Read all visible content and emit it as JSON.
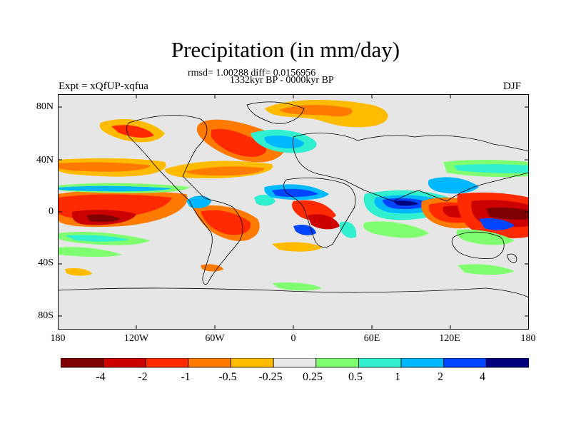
{
  "title": "Precipitation (in mm/day)",
  "stats_line": "rmsd= 1.00288 diff= 0.0156956",
  "period": "1332kyr BP - 0000kyr BP",
  "experiment": "Expt = xQfUP-xqfua",
  "season": "DJF",
  "lat_labels": [
    "80N",
    "40N",
    "0",
    "40S",
    "80S"
  ],
  "lon_labels": [
    "180",
    "120W",
    "60W",
    "0",
    "60E",
    "120E",
    "180"
  ],
  "colorbar": {
    "labels": [
      "-4",
      "-2",
      "-1",
      "-0.5",
      "-0.25",
      "0.25",
      "0.5",
      "1",
      "2",
      "4"
    ],
    "colors": [
      "#7f0000",
      "#cc0000",
      "#ff2a00",
      "#ff7a00",
      "#ffbb00",
      "#e8e8e8",
      "#80ff70",
      "#30f0d0",
      "#00b8ff",
      "#0044ff",
      "#00007f"
    ]
  }
}
